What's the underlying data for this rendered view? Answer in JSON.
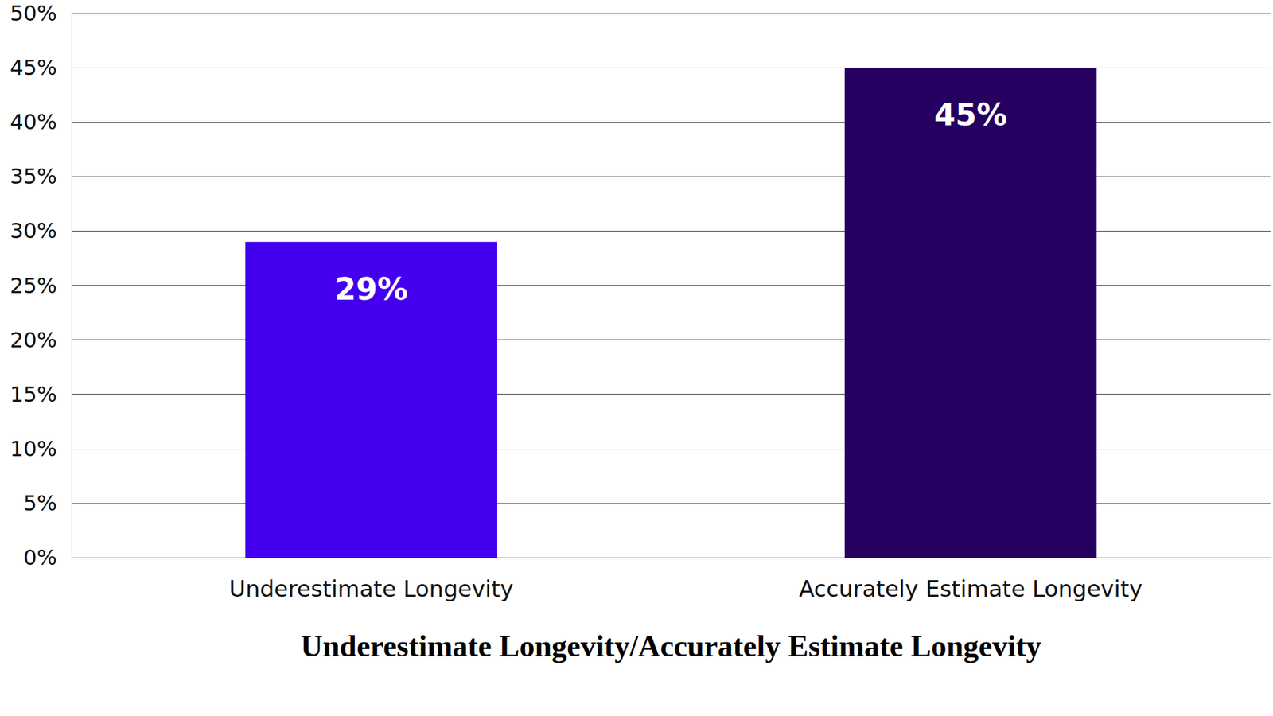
{
  "chart_data": {
    "type": "bar",
    "xlabel": "Underestimate Longevity/Accurately Estimate Longevity",
    "categories": [
      "Underestimate Longevity",
      "Accurately Estimate Longevity"
    ],
    "values": [
      29,
      45
    ],
    "value_labels": [
      "29%",
      "45%"
    ],
    "colors": [
      "#4400ee",
      "#250060"
    ],
    "ylim": [
      0,
      50
    ],
    "yticks": [
      {
        "value": 0,
        "label": "0%"
      },
      {
        "value": 5,
        "label": "5%"
      },
      {
        "value": 10,
        "label": "10%"
      },
      {
        "value": 15,
        "label": "15%"
      },
      {
        "value": 20,
        "label": "20%"
      },
      {
        "value": 25,
        "label": "25%"
      },
      {
        "value": 30,
        "label": "30%"
      },
      {
        "value": 35,
        "label": "35%"
      },
      {
        "value": 40,
        "label": "40%"
      },
      {
        "value": 45,
        "label": "45%"
      },
      {
        "value": 50,
        "label": "50%"
      }
    ],
    "grid": true,
    "data_labels": true
  }
}
